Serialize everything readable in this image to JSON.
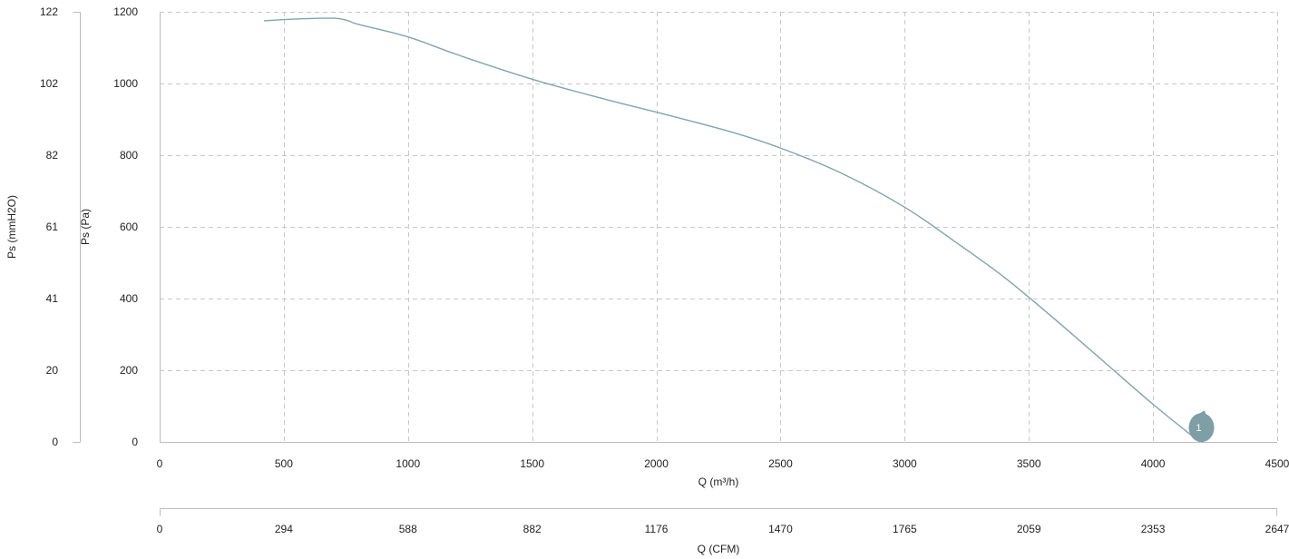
{
  "chart_data": {
    "type": "line",
    "grid": true,
    "colors": {
      "curve": "#7fa5ad",
      "marker": "#7f9fa6",
      "axis": "#bdbdbd",
      "grid": "#c8c8c8"
    },
    "x_primary": {
      "label": "Q (m³/h)",
      "range": [
        0,
        4500
      ],
      "ticks": [
        0,
        500,
        1000,
        1500,
        2000,
        2500,
        3000,
        3500,
        4000,
        4500
      ],
      "tick_labels": [
        "0",
        "500",
        "1000",
        "1500",
        "2000",
        "2500",
        "3000",
        "3500",
        "4000",
        "4500"
      ]
    },
    "x_secondary": {
      "label": "Q (CFM)",
      "tick_labels": [
        "0",
        "294",
        "588",
        "882",
        "1176",
        "1470",
        "1765",
        "2059",
        "2353",
        "2647"
      ]
    },
    "y_primary": {
      "label": "Ps (Pa)",
      "range": [
        0,
        1200
      ],
      "ticks": [
        0,
        200,
        400,
        600,
        800,
        1000,
        1200
      ],
      "tick_labels": [
        "0",
        "200",
        "400",
        "600",
        "800",
        "1000",
        "1200"
      ]
    },
    "y_secondary": {
      "label": "Ps (mmH2O)",
      "tick_labels": [
        "0",
        "20",
        "41",
        "61",
        "82",
        "102",
        "122"
      ]
    },
    "series": [
      {
        "x": [
          420,
          550,
          700,
          760,
          800,
          1000,
          1200,
          1500,
          1800,
          2000,
          2300,
          2500,
          2750,
          3000,
          3200,
          3400,
          3600,
          3800,
          4000,
          4170
        ],
        "y": [
          1175,
          1180,
          1182,
          1175,
          1165,
          1130,
          1080,
          1012,
          955,
          920,
          865,
          820,
          748,
          655,
          560,
          460,
          345,
          225,
          105,
          10
        ]
      }
    ],
    "markers": [
      {
        "label": "1",
        "x": 4195,
        "y": 40
      }
    ]
  }
}
